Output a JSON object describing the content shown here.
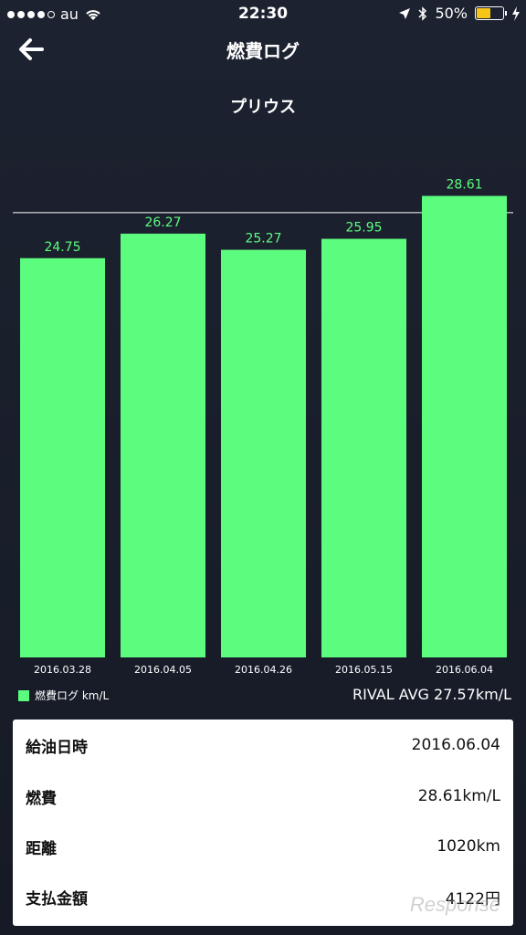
{
  "status_bar": {
    "carrier": "au",
    "time": "22:30",
    "battery": "50%"
  },
  "nav": {
    "title": "燃費ログ"
  },
  "subtitle": "プリウス",
  "chart_data": {
    "type": "bar",
    "categories": [
      "2016.03.28",
      "2016.04.05",
      "2016.04.26",
      "2016.05.15",
      "2016.06.04"
    ],
    "values": [
      24.75,
      26.27,
      25.27,
      25.95,
      28.61
    ],
    "value_labels": [
      "24.75",
      "26.27",
      "25.27",
      "25.95",
      "28.61"
    ],
    "reference_line": 27.57,
    "ylim": [
      0,
      30
    ],
    "bar_color": "#5cfc7f",
    "label_color": "#5cfc7f",
    "series": [
      {
        "name": "燃費ログ km/L",
        "values": [
          24.75,
          26.27,
          25.27,
          25.95,
          28.61
        ]
      }
    ]
  },
  "legend": {
    "label": "燃費ログ km/L"
  },
  "rival_avg": "RIVAL AVG 27.57km/L",
  "details": [
    {
      "key": "給油日時",
      "value": "2016.06.04"
    },
    {
      "key": "燃費",
      "value": "28.61km/L"
    },
    {
      "key": "距離",
      "value": "1020km"
    },
    {
      "key": "支払金額",
      "value": "4122円"
    }
  ],
  "watermark": "Response"
}
